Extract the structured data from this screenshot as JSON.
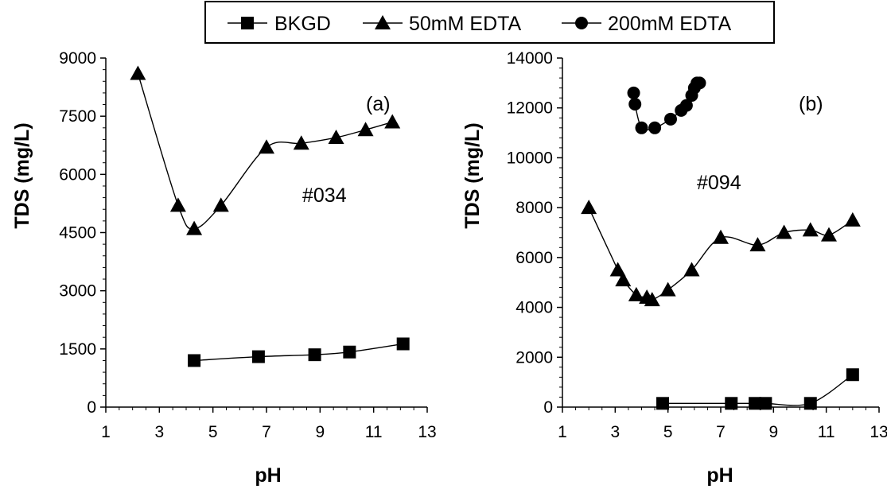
{
  "legend": {
    "entries": [
      {
        "label": "BKGD",
        "marker": "square"
      },
      {
        "label": "50mM EDTA",
        "marker": "triangle"
      },
      {
        "label": "200mM EDTA",
        "marker": "circle"
      }
    ]
  },
  "chart_data": [
    {
      "type": "line",
      "panel_label": "(a)",
      "annotation": "#034",
      "xlabel": "pH",
      "ylabel": "TDS (mg/L)",
      "xlim": [
        1,
        13
      ],
      "ylim": [
        0,
        9000
      ],
      "xticks": [
        1,
        3,
        5,
        7,
        9,
        11,
        13
      ],
      "yticks": [
        0,
        1500,
        3000,
        4500,
        6000,
        7500,
        9000
      ],
      "series": [
        {
          "name": "BKGD",
          "marker": "square",
          "x": [
            4.3,
            6.7,
            8.8,
            10.1,
            12.1
          ],
          "y": [
            1200,
            1300,
            1350,
            1420,
            1630
          ]
        },
        {
          "name": "50mM EDTA",
          "marker": "triangle",
          "x": [
            2.2,
            3.7,
            4.3,
            5.3,
            7.0,
            8.3,
            9.6,
            10.7,
            11.7
          ],
          "y": [
            8600,
            5200,
            4600,
            5200,
            6700,
            6800,
            6950,
            7150,
            7350
          ]
        }
      ]
    },
    {
      "type": "line",
      "panel_label": "(b)",
      "annotation": "#094",
      "xlabel": "pH",
      "ylabel": "TDS (mg/L)",
      "xlim": [
        1,
        13
      ],
      "ylim": [
        0,
        14000
      ],
      "xticks": [
        1,
        3,
        5,
        7,
        9,
        11,
        13
      ],
      "yticks": [
        0,
        2000,
        4000,
        6000,
        8000,
        10000,
        12000,
        14000
      ],
      "series": [
        {
          "name": "BKGD",
          "marker": "square",
          "x": [
            4.8,
            7.4,
            8.3,
            8.7,
            10.4,
            12.0
          ],
          "y": [
            150,
            150,
            150,
            150,
            150,
            1300
          ]
        },
        {
          "name": "50mM EDTA",
          "marker": "triangle",
          "x": [
            2.0,
            3.1,
            3.3,
            3.8,
            4.2,
            4.4,
            5.0,
            5.9,
            7.0,
            8.4,
            9.4,
            10.4,
            11.1,
            12.0
          ],
          "y": [
            8000,
            5500,
            5100,
            4500,
            4400,
            4300,
            4700,
            5500,
            6800,
            6500,
            7000,
            7100,
            6900,
            7500
          ]
        },
        {
          "name": "200mM EDTA",
          "marker": "circle",
          "x": [
            3.7,
            3.75,
            4.0,
            4.5,
            5.1,
            5.5,
            5.7,
            5.9,
            6.0,
            6.1,
            6.2
          ],
          "y": [
            12600,
            12150,
            11200,
            11200,
            11550,
            11900,
            12100,
            12500,
            12800,
            13000,
            13000
          ]
        }
      ]
    }
  ]
}
